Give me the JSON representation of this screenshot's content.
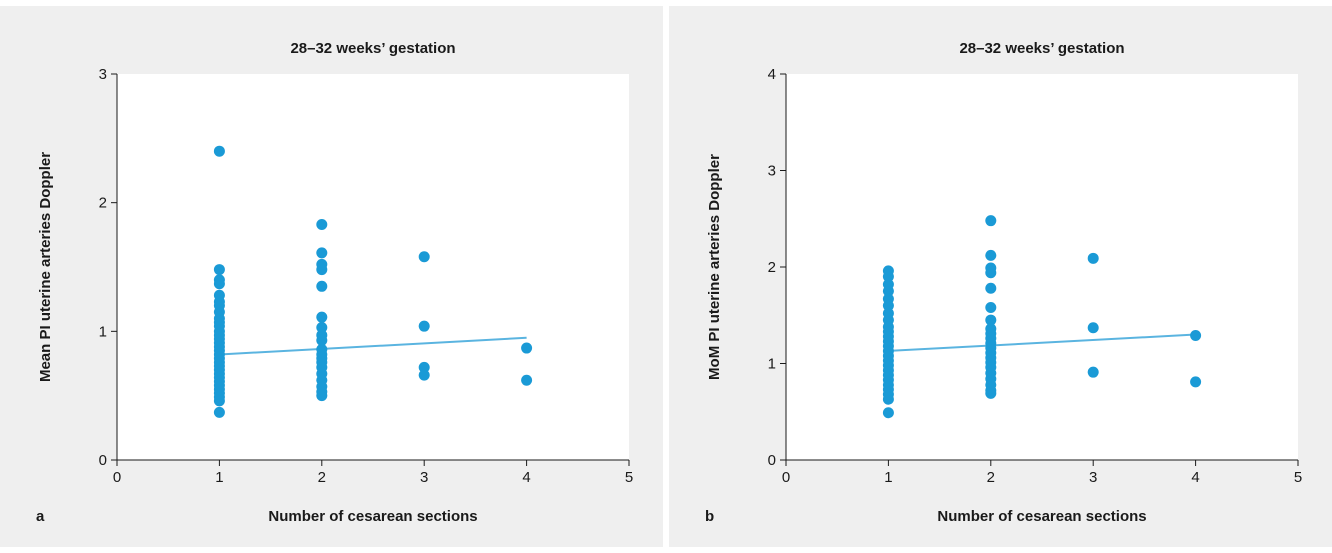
{
  "chart_data": [
    {
      "type": "scatter",
      "panel_label": "a",
      "title": "28–32 weeks’ gestation",
      "xlabel": "Number of cesarean sections",
      "ylabel": "Mean PI uterine arteries Doppler",
      "xlim": [
        0,
        5
      ],
      "ylim": [
        0,
        3
      ],
      "xticks": [
        "0",
        "1",
        "2",
        "3",
        "4",
        "5"
      ],
      "yticks": [
        "0",
        "1",
        "2",
        "3"
      ],
      "grid": false,
      "point_color": "#1a9ad6",
      "points": [
        [
          1,
          2.4
        ],
        [
          1,
          1.48
        ],
        [
          1,
          1.4
        ],
        [
          1,
          1.37
        ],
        [
          1,
          1.28
        ],
        [
          1,
          1.23
        ],
        [
          1,
          1.2
        ],
        [
          1,
          1.15
        ],
        [
          1,
          1.1
        ],
        [
          1,
          1.07
        ],
        [
          1,
          1.04
        ],
        [
          1,
          1.0
        ],
        [
          1,
          0.97
        ],
        [
          1,
          0.94
        ],
        [
          1,
          0.91
        ],
        [
          1,
          0.88
        ],
        [
          1,
          0.85
        ],
        [
          1,
          0.82
        ],
        [
          1,
          0.79
        ],
        [
          1,
          0.76
        ],
        [
          1,
          0.73
        ],
        [
          1,
          0.7
        ],
        [
          1,
          0.67
        ],
        [
          1,
          0.64
        ],
        [
          1,
          0.61
        ],
        [
          1,
          0.58
        ],
        [
          1,
          0.55
        ],
        [
          1,
          0.52
        ],
        [
          1,
          0.49
        ],
        [
          1,
          0.46
        ],
        [
          1,
          0.37
        ],
        [
          2,
          1.83
        ],
        [
          2,
          1.61
        ],
        [
          2,
          1.52
        ],
        [
          2,
          1.48
        ],
        [
          2,
          1.35
        ],
        [
          2,
          1.11
        ],
        [
          2,
          1.03
        ],
        [
          2,
          0.97
        ],
        [
          2,
          0.93
        ],
        [
          2,
          0.86
        ],
        [
          2,
          0.82
        ],
        [
          2,
          0.79
        ],
        [
          2,
          0.76
        ],
        [
          2,
          0.72
        ],
        [
          2,
          0.67
        ],
        [
          2,
          0.62
        ],
        [
          2,
          0.57
        ],
        [
          2,
          0.53
        ],
        [
          2,
          0.5
        ],
        [
          3,
          1.58
        ],
        [
          3,
          1.04
        ],
        [
          3,
          0.72
        ],
        [
          3,
          0.66
        ],
        [
          4,
          0.87
        ],
        [
          4,
          0.62
        ]
      ],
      "trendline": {
        "x": [
          1,
          4
        ],
        "y": [
          0.82,
          0.95
        ],
        "color": "#5ab4e0"
      }
    },
    {
      "type": "scatter",
      "panel_label": "b",
      "title": "28–32 weeks’ gestation",
      "xlabel": "Number of cesarean sections",
      "ylabel": "MoM PI uterine arteries Doppler",
      "xlim": [
        0,
        5
      ],
      "ylim": [
        0,
        4
      ],
      "xticks": [
        "0",
        "1",
        "2",
        "3",
        "4",
        "5"
      ],
      "yticks": [
        "0",
        "1",
        "2",
        "3",
        "4"
      ],
      "grid": false,
      "point_color": "#1a9ad6",
      "points": [
        [
          1,
          1.96
        ],
        [
          1,
          1.9
        ],
        [
          1,
          1.82
        ],
        [
          1,
          1.75
        ],
        [
          1,
          1.67
        ],
        [
          1,
          1.6
        ],
        [
          1,
          1.52
        ],
        [
          1,
          1.45
        ],
        [
          1,
          1.38
        ],
        [
          1,
          1.33
        ],
        [
          1,
          1.28
        ],
        [
          1,
          1.23
        ],
        [
          1,
          1.18
        ],
        [
          1,
          1.13
        ],
        [
          1,
          1.08
        ],
        [
          1,
          1.03
        ],
        [
          1,
          0.98
        ],
        [
          1,
          0.93
        ],
        [
          1,
          0.88
        ],
        [
          1,
          0.83
        ],
        [
          1,
          0.78
        ],
        [
          1,
          0.73
        ],
        [
          1,
          0.68
        ],
        [
          1,
          0.63
        ],
        [
          1,
          0.49
        ],
        [
          2,
          2.48
        ],
        [
          2,
          2.12
        ],
        [
          2,
          1.99
        ],
        [
          2,
          1.94
        ],
        [
          2,
          1.78
        ],
        [
          2,
          1.58
        ],
        [
          2,
          1.45
        ],
        [
          2,
          1.36
        ],
        [
          2,
          1.31
        ],
        [
          2,
          1.26
        ],
        [
          2,
          1.21
        ],
        [
          2,
          1.16
        ],
        [
          2,
          1.11
        ],
        [
          2,
          1.06
        ],
        [
          2,
          1.01
        ],
        [
          2,
          0.96
        ],
        [
          2,
          0.9
        ],
        [
          2,
          0.84
        ],
        [
          2,
          0.78
        ],
        [
          2,
          0.72
        ],
        [
          2,
          0.69
        ],
        [
          3,
          2.09
        ],
        [
          3,
          1.37
        ],
        [
          3,
          0.91
        ],
        [
          4,
          1.29
        ],
        [
          4,
          0.81
        ]
      ],
      "trendline": {
        "x": [
          1,
          4
        ],
        "y": [
          1.13,
          1.3
        ],
        "color": "#5ab4e0"
      }
    }
  ]
}
